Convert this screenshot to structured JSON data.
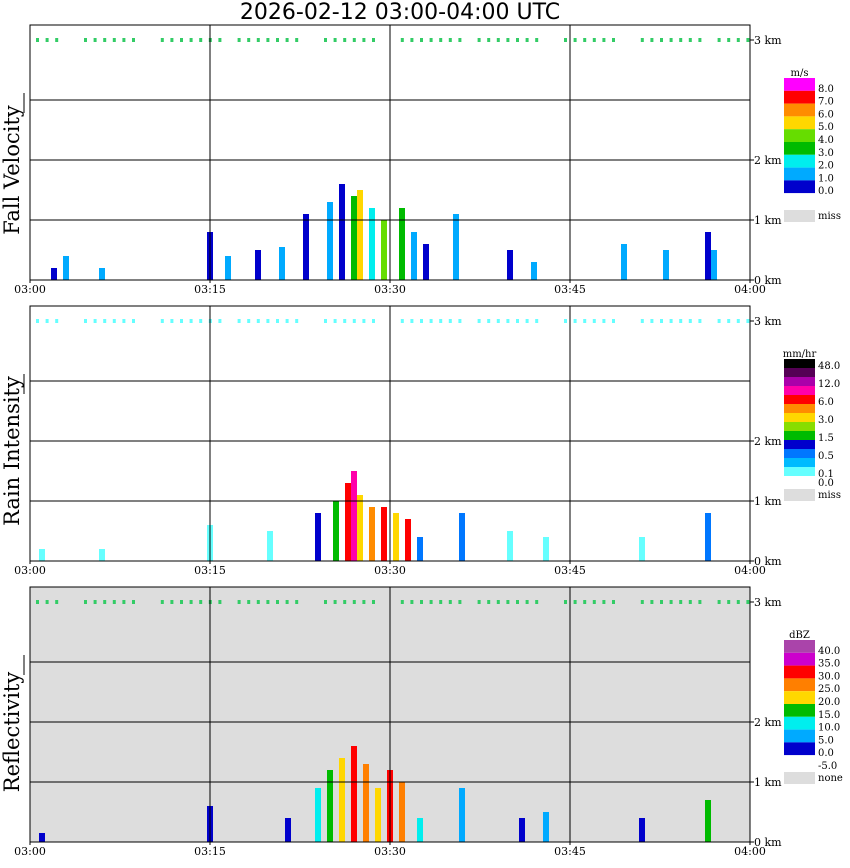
{
  "title": "2026-02-12   03:00-04:00 UTC",
  "x_ticks": [
    "03:00",
    "03:15",
    "03:30",
    "03:45",
    "04:00"
  ],
  "y_ticks": [
    "0 km",
    "1 km",
    "2 km",
    "3 km"
  ],
  "chart_data": [
    {
      "type": "heatmap",
      "title": "Fall Velocity",
      "ylabel": "Fall Velocity",
      "xlim": [
        "03:00",
        "04:00"
      ],
      "ylim_km": [
        0,
        3.2
      ],
      "grid": true,
      "background": "#ffffff",
      "legend_unit": "m/s",
      "legend_placement": "right",
      "legend": [
        {
          "label": "8.0",
          "color": "#ff00ff"
        },
        {
          "label": "7.0",
          "color": "#ff0000"
        },
        {
          "label": "6.0",
          "color": "#ff8c00"
        },
        {
          "label": "5.0",
          "color": "#ffd700"
        },
        {
          "label": "4.0",
          "color": "#66dd00"
        },
        {
          "label": "3.0",
          "color": "#00bb00"
        },
        {
          "label": "2.0",
          "color": "#00eeee"
        },
        {
          "label": "1.0",
          "color": "#00aaff"
        },
        {
          "label": "0.0",
          "color": "#0000cc"
        },
        {
          "label": "",
          "color": "#ffffff"
        },
        {
          "label": "miss",
          "color": "#dddddd"
        }
      ],
      "columns": [
        {
          "t": 2,
          "top": 0.2,
          "color": "#0000cc"
        },
        {
          "t": 3,
          "top": 0.4,
          "color": "#00aaff"
        },
        {
          "t": 6,
          "top": 0.2,
          "color": "#00aaff"
        },
        {
          "t": 15,
          "top": 0.8,
          "color": "#0000cc"
        },
        {
          "t": 16.5,
          "top": 0.4,
          "color": "#00aaff"
        },
        {
          "t": 19,
          "top": 0.5,
          "color": "#0000cc"
        },
        {
          "t": 21,
          "top": 0.55,
          "color": "#00aaff"
        },
        {
          "t": 23,
          "top": 1.1,
          "color": "#0000cc"
        },
        {
          "t": 25,
          "top": 1.3,
          "color": "#00aaff"
        },
        {
          "t": 26,
          "top": 1.6,
          "color": "#0000cc"
        },
        {
          "t": 27,
          "top": 1.4,
          "color": "#00bb00"
        },
        {
          "t": 27.5,
          "top": 1.5,
          "color": "#ffd700"
        },
        {
          "t": 28.5,
          "top": 1.2,
          "color": "#00eeee"
        },
        {
          "t": 29.5,
          "top": 1.0,
          "color": "#66dd00"
        },
        {
          "t": 31,
          "top": 1.2,
          "color": "#00bb00"
        },
        {
          "t": 32,
          "top": 0.8,
          "color": "#00aaff"
        },
        {
          "t": 33,
          "top": 0.6,
          "color": "#0000cc"
        },
        {
          "t": 35.5,
          "top": 1.1,
          "color": "#00aaff"
        },
        {
          "t": 40,
          "top": 0.5,
          "color": "#0000cc"
        },
        {
          "t": 42,
          "top": 0.3,
          "color": "#00aaff"
        },
        {
          "t": 49.5,
          "top": 0.6,
          "color": "#00aaff"
        },
        {
          "t": 53,
          "top": 0.5,
          "color": "#00aaff"
        },
        {
          "t": 56.5,
          "top": 0.8,
          "color": "#0000cc"
        },
        {
          "t": 57,
          "top": 0.5,
          "color": "#00aaff"
        }
      ]
    },
    {
      "type": "heatmap",
      "title": "Rain Intensity",
      "ylabel": "Rain Intensity",
      "xlim": [
        "03:00",
        "04:00"
      ],
      "ylim_km": [
        0,
        3.2
      ],
      "grid": true,
      "background": "#ffffff",
      "legend_unit": "mm/hr",
      "legend_placement": "right",
      "legend": [
        {
          "label": "48.0",
          "color": "#000000"
        },
        {
          "label": "",
          "color": "#550055"
        },
        {
          "label": "12.0",
          "color": "#aa00aa"
        },
        {
          "label": "",
          "color": "#ff00aa"
        },
        {
          "label": "6.0",
          "color": "#ff0000"
        },
        {
          "label": "",
          "color": "#ff8c00"
        },
        {
          "label": "3.0",
          "color": "#ffd700"
        },
        {
          "label": "",
          "color": "#88dd00"
        },
        {
          "label": "1.5",
          "color": "#00bb00"
        },
        {
          "label": "",
          "color": "#0000cc"
        },
        {
          "label": "0.5",
          "color": "#0077ff"
        },
        {
          "label": "",
          "color": "#00bbff"
        },
        {
          "label": "0.1",
          "color": "#66ffff"
        },
        {
          "label": "0.0",
          "color": "#ffffff"
        },
        {
          "label": "miss",
          "color": "#dddddd"
        }
      ],
      "columns": [
        {
          "t": 1,
          "top": 0.2,
          "color": "#66ffff"
        },
        {
          "t": 6,
          "top": 0.2,
          "color": "#66ffff"
        },
        {
          "t": 15,
          "top": 0.6,
          "color": "#66ffff"
        },
        {
          "t": 20,
          "top": 0.5,
          "color": "#66ffff"
        },
        {
          "t": 24,
          "top": 0.8,
          "color": "#0000cc"
        },
        {
          "t": 25.5,
          "top": 1.0,
          "color": "#00bb00"
        },
        {
          "t": 26.5,
          "top": 1.3,
          "color": "#ff0000"
        },
        {
          "t": 27,
          "top": 1.5,
          "color": "#ff00aa"
        },
        {
          "t": 27.5,
          "top": 1.1,
          "color": "#ffd700"
        },
        {
          "t": 28.5,
          "top": 0.9,
          "color": "#ff8c00"
        },
        {
          "t": 29.5,
          "top": 0.9,
          "color": "#ff0000"
        },
        {
          "t": 30.5,
          "top": 0.8,
          "color": "#ffd700"
        },
        {
          "t": 31.5,
          "top": 0.7,
          "color": "#ff0000"
        },
        {
          "t": 32.5,
          "top": 0.4,
          "color": "#0077ff"
        },
        {
          "t": 36,
          "top": 0.8,
          "color": "#0077ff"
        },
        {
          "t": 40,
          "top": 0.5,
          "color": "#66ffff"
        },
        {
          "t": 43,
          "top": 0.4,
          "color": "#66ffff"
        },
        {
          "t": 51,
          "top": 0.4,
          "color": "#66ffff"
        },
        {
          "t": 56.5,
          "top": 0.8,
          "color": "#0077ff"
        }
      ]
    },
    {
      "type": "heatmap",
      "title": "Reflectivity",
      "ylabel": "Reflectivity",
      "xlim": [
        "03:00",
        "04:00"
      ],
      "ylim_km": [
        0,
        3.2
      ],
      "grid": true,
      "background": "#dddddd",
      "legend_unit": "dBZ",
      "legend_placement": "right",
      "legend": [
        {
          "label": "40.0",
          "color": "#aa44aa"
        },
        {
          "label": "35.0",
          "color": "#cc00cc"
        },
        {
          "label": "30.0",
          "color": "#ff0000"
        },
        {
          "label": "25.0",
          "color": "#ff7f00"
        },
        {
          "label": "20.0",
          "color": "#ffd700"
        },
        {
          "label": "15.0",
          "color": "#00bb00"
        },
        {
          "label": "10.0",
          "color": "#00eeee"
        },
        {
          "label": "5.0",
          "color": "#00aaff"
        },
        {
          "label": "0.0",
          "color": "#0000cc"
        },
        {
          "label": "-5.0",
          "color": "#ffffff"
        },
        {
          "label": "none",
          "color": "#dddddd"
        }
      ],
      "columns": [
        {
          "t": 1,
          "top": 0.15,
          "color": "#0000cc"
        },
        {
          "t": 15,
          "top": 0.6,
          "color": "#0000cc"
        },
        {
          "t": 21.5,
          "top": 0.4,
          "color": "#0000cc"
        },
        {
          "t": 24,
          "top": 0.9,
          "color": "#00eeee"
        },
        {
          "t": 25,
          "top": 1.2,
          "color": "#00bb00"
        },
        {
          "t": 26,
          "top": 1.4,
          "color": "#ffd700"
        },
        {
          "t": 27,
          "top": 1.6,
          "color": "#ff0000"
        },
        {
          "t": 28,
          "top": 1.3,
          "color": "#ff7f00"
        },
        {
          "t": 29,
          "top": 0.9,
          "color": "#ffd700"
        },
        {
          "t": 30,
          "top": 1.2,
          "color": "#ff0000"
        },
        {
          "t": 31,
          "top": 1.0,
          "color": "#ff7f00"
        },
        {
          "t": 32.5,
          "top": 0.4,
          "color": "#00eeee"
        },
        {
          "t": 36,
          "top": 0.9,
          "color": "#00aaff"
        },
        {
          "t": 41,
          "top": 0.4,
          "color": "#0000cc"
        },
        {
          "t": 43,
          "top": 0.5,
          "color": "#00aaff"
        },
        {
          "t": 51,
          "top": 0.4,
          "color": "#0000cc"
        },
        {
          "t": 56.5,
          "top": 0.7,
          "color": "#00bb00"
        }
      ]
    }
  ]
}
